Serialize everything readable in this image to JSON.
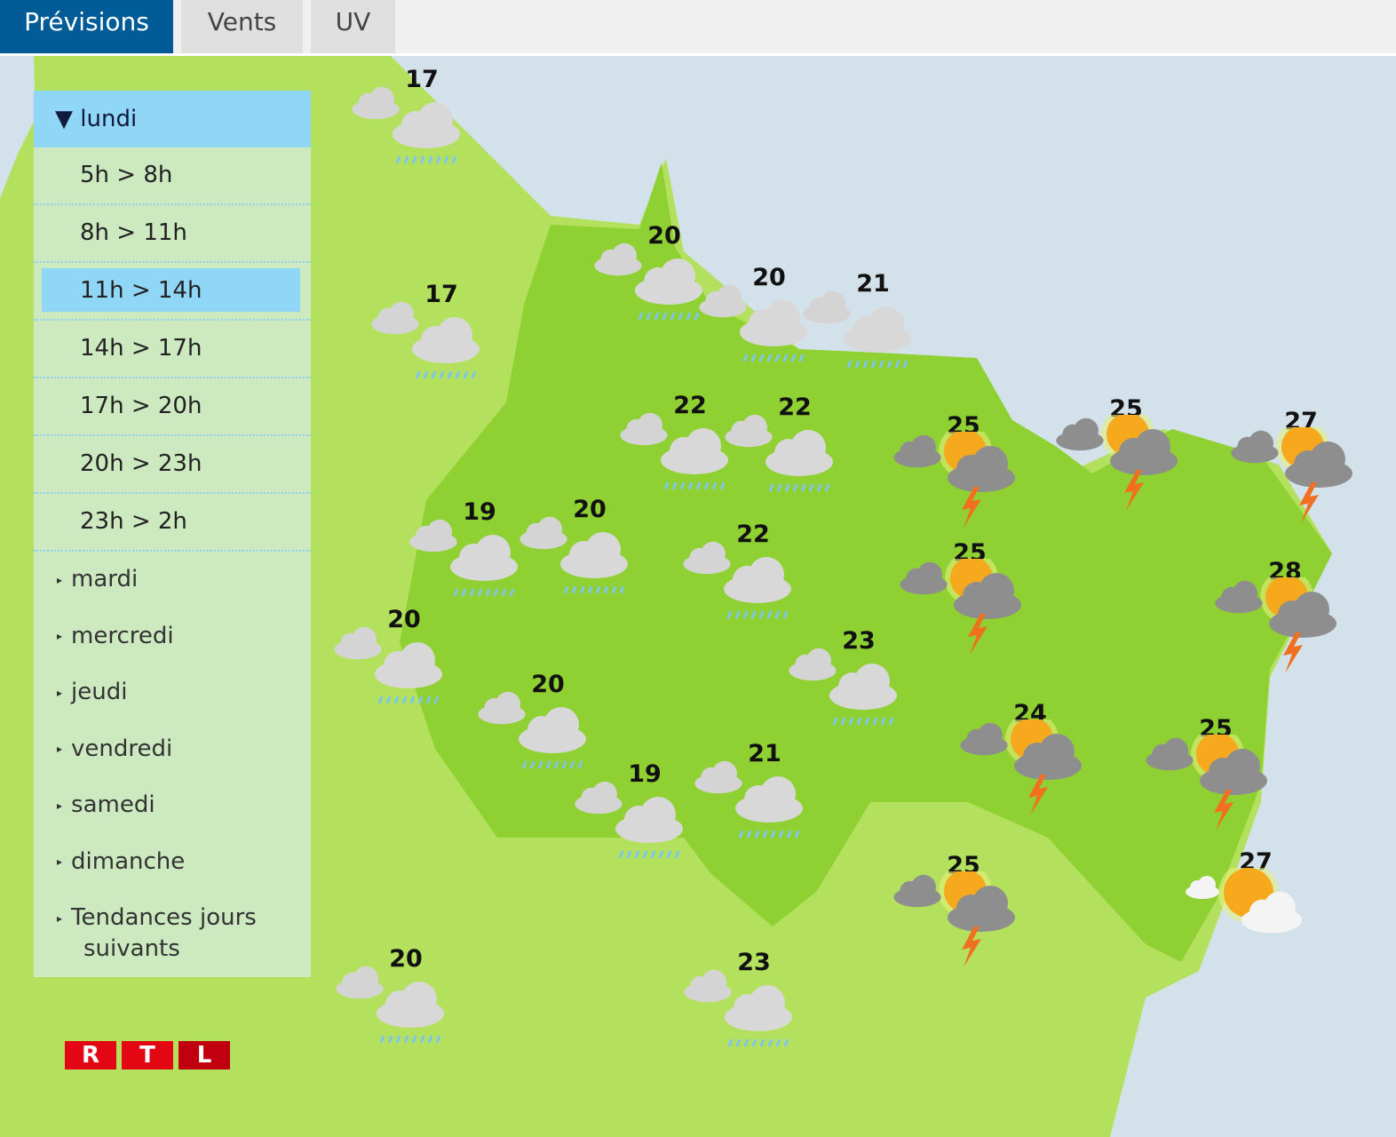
{
  "tabs": [
    {
      "label": "Prévisions",
      "active": true
    },
    {
      "label": "Vents"
    },
    {
      "label": "UV"
    }
  ],
  "panel": {
    "open_day": "lundi",
    "slots": [
      "5h > 8h",
      "8h > 11h",
      "11h > 14h",
      "14h > 17h",
      "17h > 20h",
      "20h > 23h",
      "23h > 2h"
    ],
    "selected_slot": "11h > 14h",
    "days": [
      "mardi",
      "mercredi",
      "jeudi",
      "vendredi",
      "samedi",
      "dimanche"
    ],
    "trends": [
      "Tendances jours",
      "suivants"
    ]
  },
  "logo": {
    "letters": [
      "R",
      "T",
      "L"
    ],
    "color": "#e30613"
  },
  "colors": {
    "sea": "#d3e2ea",
    "land": "#b3e15e",
    "region": "#8fd032",
    "sun": "#f7a91d",
    "storm_cloud": "#8e8e8e",
    "rain_cloud": "#d8d8d8"
  },
  "forecasts": [
    {
      "temp": "17",
      "icon": "rain"
    },
    {
      "temp": "17",
      "icon": "rain"
    },
    {
      "temp": "20",
      "icon": "rain"
    },
    {
      "temp": "20",
      "icon": "rain"
    },
    {
      "temp": "21",
      "icon": "rain"
    },
    {
      "temp": "22",
      "icon": "rain"
    },
    {
      "temp": "22",
      "icon": "rain"
    },
    {
      "temp": "25",
      "icon": "storm"
    },
    {
      "temp": "25",
      "icon": "storm"
    },
    {
      "temp": "27",
      "icon": "storm"
    },
    {
      "temp": "19",
      "icon": "rain"
    },
    {
      "temp": "20",
      "icon": "rain"
    },
    {
      "temp": "22",
      "icon": "rain"
    },
    {
      "temp": "25",
      "icon": "storm"
    },
    {
      "temp": "28",
      "icon": "storm"
    },
    {
      "temp": "20",
      "icon": "rain"
    },
    {
      "temp": "23",
      "icon": "rain"
    },
    {
      "temp": "20",
      "icon": "rain"
    },
    {
      "temp": "24",
      "icon": "storm"
    },
    {
      "temp": "25",
      "icon": "storm"
    },
    {
      "temp": "19",
      "icon": "rain"
    },
    {
      "temp": "21",
      "icon": "rain"
    },
    {
      "temp": "25",
      "icon": "storm"
    },
    {
      "temp": "27",
      "icon": "sun-cloud"
    },
    {
      "temp": "20",
      "icon": "rain"
    },
    {
      "temp": "23",
      "icon": "rain"
    }
  ]
}
